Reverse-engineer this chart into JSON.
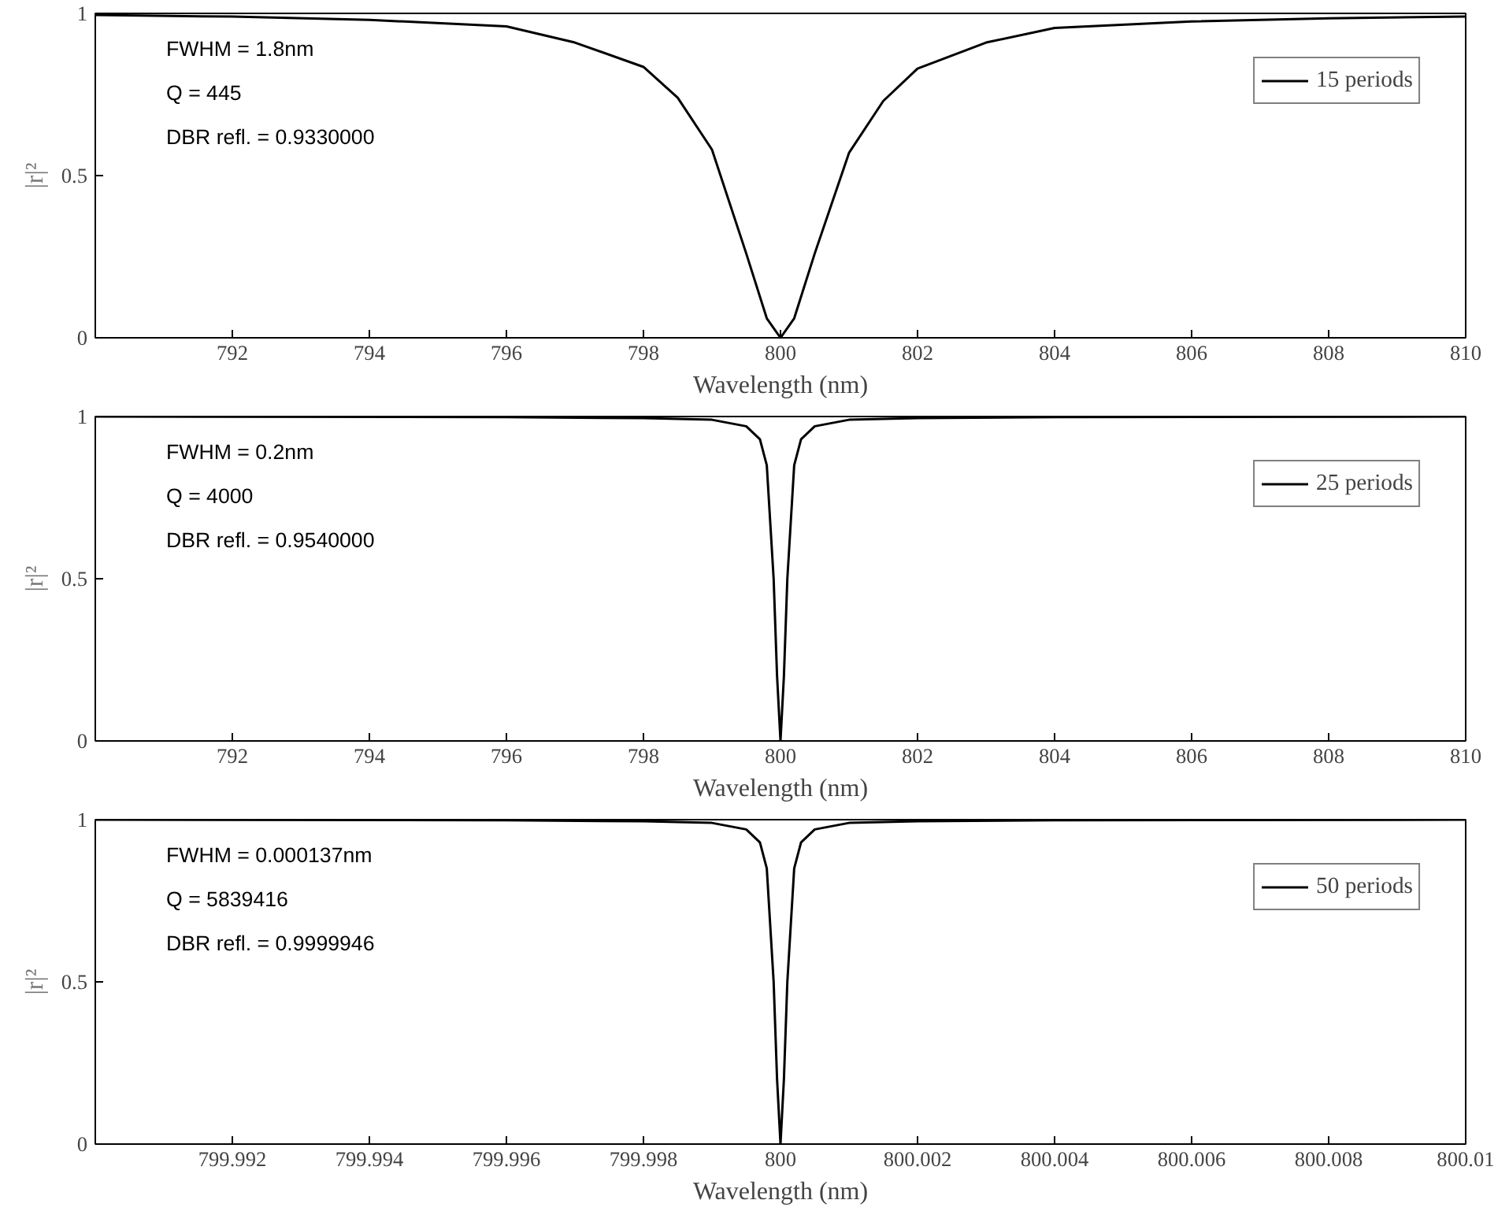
{
  "chart_data": [
    {
      "type": "line",
      "xlabel": "Wavelength (nm)",
      "ylabel": "|r|²",
      "annotations": [
        "FWHM = 1.8nm",
        "Q = 445",
        "DBR refl. = 0.9330000"
      ],
      "legend": "top right",
      "grid": false,
      "xlim": [
        790,
        810
      ],
      "ylim": [
        0,
        1
      ],
      "xticks": [
        792,
        794,
        796,
        798,
        800,
        802,
        804,
        806,
        808,
        810
      ],
      "yticks": [
        0,
        0.5,
        1
      ],
      "x": [
        790,
        792,
        794,
        796,
        797,
        798,
        798.5,
        799,
        799.5,
        799.8,
        800,
        800.2,
        800.5,
        801,
        801.5,
        802,
        803,
        804,
        806,
        808,
        810
      ],
      "series": [
        {
          "name": "15 periods",
          "color": "#000000",
          "values": [
            0.995,
            0.99,
            0.98,
            0.96,
            0.91,
            0.835,
            0.74,
            0.58,
            0.26,
            0.06,
            0.0,
            0.06,
            0.26,
            0.57,
            0.73,
            0.83,
            0.91,
            0.955,
            0.975,
            0.985,
            0.99
          ]
        }
      ]
    },
    {
      "type": "line",
      "xlabel": "Wavelength (nm)",
      "ylabel": "|r|²",
      "annotations": [
        "FWHM = 0.2nm",
        "Q = 4000",
        "DBR refl. = 0.9540000"
      ],
      "legend": "top right",
      "grid": false,
      "xlim": [
        790,
        810
      ],
      "ylim": [
        0,
        1
      ],
      "xticks": [
        792,
        794,
        796,
        798,
        800,
        802,
        804,
        806,
        808,
        810
      ],
      "yticks": [
        0,
        0.5,
        1
      ],
      "x": [
        790,
        796,
        798,
        799,
        799.5,
        799.7,
        799.8,
        799.9,
        799.95,
        800,
        800.05,
        800.1,
        800.2,
        800.3,
        800.5,
        801,
        802,
        804,
        810
      ],
      "series": [
        {
          "name": "25 periods",
          "color": "#000000",
          "values": [
            1,
            0.998,
            0.995,
            0.99,
            0.97,
            0.93,
            0.85,
            0.5,
            0.2,
            0,
            0.2,
            0.5,
            0.85,
            0.93,
            0.97,
            0.99,
            0.995,
            0.998,
            1
          ]
        }
      ]
    },
    {
      "type": "line",
      "xlabel": "Wavelength (nm)",
      "ylabel": "|r|²",
      "annotations": [
        "FWHM = 0.000137nm",
        "Q = 5839416",
        "DBR refl. = 0.9999946"
      ],
      "legend": "top right",
      "grid": false,
      "xlim": [
        799.99,
        800.01
      ],
      "ylim": [
        0,
        1
      ],
      "xticks": [
        799.992,
        799.994,
        799.996,
        799.998,
        800,
        800.002,
        800.004,
        800.006,
        800.008,
        800.01
      ],
      "yticks": [
        0,
        0.5,
        1
      ],
      "x": [
        799.99,
        799.996,
        799.998,
        799.999,
        799.9995,
        799.9997,
        799.9998,
        799.9999,
        799.99995,
        800,
        800.00005,
        800.0001,
        800.0002,
        800.0003,
        800.0005,
        800.001,
        800.002,
        800.004,
        800.01
      ],
      "series": [
        {
          "name": "50 periods",
          "color": "#000000",
          "values": [
            1,
            0.998,
            0.995,
            0.99,
            0.97,
            0.93,
            0.85,
            0.5,
            0.2,
            0,
            0.2,
            0.5,
            0.85,
            0.93,
            0.97,
            0.99,
            0.995,
            0.998,
            1
          ]
        }
      ]
    }
  ]
}
